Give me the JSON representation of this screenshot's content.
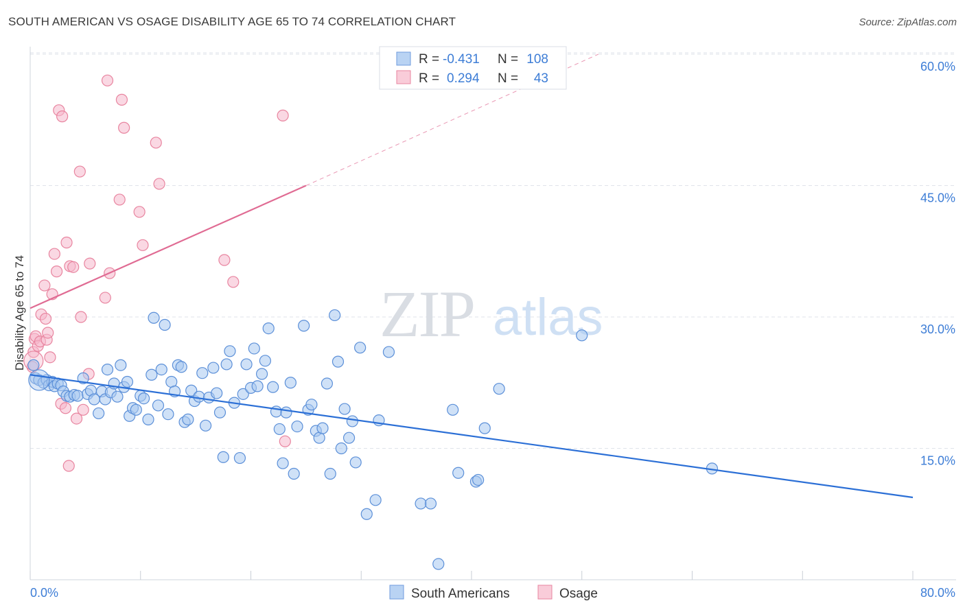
{
  "title": "SOUTH AMERICAN VS OSAGE DISABILITY AGE 65 TO 74 CORRELATION CHART",
  "source": "Source: ZipAtlas.com",
  "watermark": {
    "zip": "ZIP",
    "atlas": "atlas"
  },
  "colors": {
    "blue_fill": "#a8c8f0",
    "blue_stroke": "#5b8fd8",
    "blue_line": "#2b6fd6",
    "pink_fill": "#f6b8cc",
    "pink_stroke": "#e8849f",
    "pink_line": "#e06b93",
    "grid": "#dfe3ea",
    "label": "#3d7dd6"
  },
  "stats_legend": {
    "rows": [
      {
        "r_label": "R =",
        "r_value": "-0.431",
        "n_label": "N =",
        "n_value": "108"
      },
      {
        "r_label": "R =",
        "r_value": "0.294",
        "n_label": "N =",
        "n_value": "43"
      }
    ]
  },
  "bottom_legend": {
    "series1": "South Americans",
    "series2": "Osage"
  },
  "chart_data": {
    "type": "scatter",
    "title": "SOUTH AMERICAN VS OSAGE DISABILITY AGE 65 TO 74 CORRELATION CHART",
    "xlabel": "",
    "ylabel": "Disability Age 65 to 74",
    "xlim": [
      0,
      80
    ],
    "ylim": [
      0,
      60
    ],
    "x_tick_labels": [
      "0.0%",
      "80.0%"
    ],
    "y_ticks": [
      15,
      30,
      45,
      60
    ],
    "y_tick_labels": [
      "15.0%",
      "30.0%",
      "45.0%",
      "60.0%"
    ],
    "grid": true,
    "legend_position": "top-center",
    "series": [
      {
        "name": "South Americans",
        "color": "#a8c8f0",
        "R": -0.431,
        "N": 108,
        "trend": {
          "x": [
            0,
            80
          ],
          "y": [
            23.4,
            9.4
          ]
        },
        "points": [
          [
            0.3,
            24.5
          ],
          [
            0.5,
            23.0
          ],
          [
            0.8,
            22.8
          ],
          [
            1.2,
            22.5
          ],
          [
            1.5,
            22.8
          ],
          [
            1.7,
            22.2
          ],
          [
            2.0,
            22.6
          ],
          [
            2.2,
            22.1
          ],
          [
            2.5,
            22.4
          ],
          [
            2.8,
            22.2
          ],
          [
            3.0,
            21.5
          ],
          [
            3.3,
            21.0
          ],
          [
            3.6,
            20.9
          ],
          [
            4.0,
            21.1
          ],
          [
            4.3,
            21.0
          ],
          [
            4.8,
            23.0
          ],
          [
            5.2,
            21.2
          ],
          [
            5.5,
            21.6
          ],
          [
            5.8,
            20.6
          ],
          [
            6.2,
            19.0
          ],
          [
            6.5,
            21.5
          ],
          [
            6.8,
            20.6
          ],
          [
            7.0,
            24.0
          ],
          [
            7.3,
            21.4
          ],
          [
            7.6,
            22.4
          ],
          [
            7.9,
            20.9
          ],
          [
            8.2,
            24.5
          ],
          [
            8.5,
            22.0
          ],
          [
            8.8,
            22.6
          ],
          [
            9.0,
            18.7
          ],
          [
            9.3,
            19.6
          ],
          [
            9.6,
            19.4
          ],
          [
            10.0,
            21.0
          ],
          [
            10.3,
            20.7
          ],
          [
            10.7,
            18.3
          ],
          [
            11.0,
            23.4
          ],
          [
            11.2,
            29.9
          ],
          [
            11.6,
            19.9
          ],
          [
            11.9,
            24.0
          ],
          [
            12.2,
            29.1
          ],
          [
            12.5,
            18.9
          ],
          [
            12.8,
            22.6
          ],
          [
            13.1,
            21.5
          ],
          [
            13.4,
            24.5
          ],
          [
            13.7,
            24.3
          ],
          [
            14.0,
            18.0
          ],
          [
            14.3,
            18.3
          ],
          [
            14.6,
            21.6
          ],
          [
            14.9,
            20.4
          ],
          [
            15.3,
            20.9
          ],
          [
            15.6,
            23.6
          ],
          [
            15.9,
            17.6
          ],
          [
            16.2,
            20.8
          ],
          [
            16.6,
            24.2
          ],
          [
            16.9,
            21.3
          ],
          [
            17.2,
            19.1
          ],
          [
            17.5,
            14.0
          ],
          [
            17.8,
            24.6
          ],
          [
            18.1,
            26.1
          ],
          [
            18.5,
            20.2
          ],
          [
            19.0,
            13.9
          ],
          [
            19.3,
            21.2
          ],
          [
            19.6,
            24.6
          ],
          [
            20.0,
            21.9
          ],
          [
            20.3,
            26.4
          ],
          [
            20.6,
            22.1
          ],
          [
            21.0,
            23.5
          ],
          [
            21.3,
            25.0
          ],
          [
            21.6,
            28.7
          ],
          [
            22.0,
            22.0
          ],
          [
            22.3,
            19.2
          ],
          [
            22.6,
            17.2
          ],
          [
            22.9,
            13.3
          ],
          [
            23.2,
            19.1
          ],
          [
            23.6,
            22.5
          ],
          [
            23.9,
            12.1
          ],
          [
            24.2,
            17.5
          ],
          [
            24.8,
            29.0
          ],
          [
            25.2,
            19.4
          ],
          [
            25.5,
            20.0
          ],
          [
            25.9,
            17.0
          ],
          [
            26.2,
            16.2
          ],
          [
            26.5,
            17.3
          ],
          [
            26.9,
            22.4
          ],
          [
            27.2,
            12.1
          ],
          [
            27.6,
            30.2
          ],
          [
            27.9,
            24.9
          ],
          [
            28.2,
            15.0
          ],
          [
            28.5,
            19.5
          ],
          [
            28.9,
            16.2
          ],
          [
            29.2,
            18.1
          ],
          [
            29.5,
            13.4
          ],
          [
            29.9,
            26.5
          ],
          [
            30.5,
            7.5
          ],
          [
            31.3,
            9.1
          ],
          [
            31.6,
            18.2
          ],
          [
            32.5,
            26.0
          ],
          [
            35.4,
            8.7
          ],
          [
            36.3,
            8.7
          ],
          [
            37.0,
            1.8
          ],
          [
            38.3,
            19.4
          ],
          [
            38.8,
            12.2
          ],
          [
            40.4,
            11.2
          ],
          [
            40.6,
            11.4
          ],
          [
            41.2,
            17.3
          ],
          [
            42.5,
            21.8
          ],
          [
            50.0,
            27.9
          ],
          [
            61.8,
            12.7
          ]
        ]
      },
      {
        "name": "Osage",
        "color": "#f6b8cc",
        "R": 0.294,
        "N": 43,
        "trend": {
          "x": [
            0,
            25
          ],
          "y": [
            31.0,
            45.0
          ]
        },
        "trend_dashed": {
          "x": [
            25,
            51.5
          ],
          "y": [
            45.0,
            60.0
          ]
        },
        "points": [
          [
            0.2,
            24.3
          ],
          [
            0.3,
            26.0
          ],
          [
            0.4,
            27.5
          ],
          [
            0.5,
            27.8
          ],
          [
            0.7,
            26.7
          ],
          [
            0.9,
            27.2
          ],
          [
            1.0,
            30.3
          ],
          [
            1.3,
            33.6
          ],
          [
            1.4,
            29.8
          ],
          [
            1.5,
            27.4
          ],
          [
            1.6,
            28.2
          ],
          [
            1.8,
            25.4
          ],
          [
            2.0,
            32.6
          ],
          [
            2.2,
            37.2
          ],
          [
            2.4,
            35.2
          ],
          [
            2.6,
            53.6
          ],
          [
            2.8,
            20.1
          ],
          [
            2.9,
            52.9
          ],
          [
            3.2,
            19.6
          ],
          [
            3.3,
            38.5
          ],
          [
            3.5,
            13.0
          ],
          [
            3.6,
            35.8
          ],
          [
            3.9,
            35.7
          ],
          [
            4.2,
            18.4
          ],
          [
            4.5,
            46.6
          ],
          [
            4.6,
            30.0
          ],
          [
            4.8,
            19.4
          ],
          [
            5.3,
            23.5
          ],
          [
            5.4,
            36.1
          ],
          [
            6.8,
            32.2
          ],
          [
            7.0,
            57.0
          ],
          [
            7.2,
            35.0
          ],
          [
            8.1,
            43.4
          ],
          [
            8.3,
            54.8
          ],
          [
            8.5,
            51.6
          ],
          [
            9.9,
            42.0
          ],
          [
            10.2,
            38.2
          ],
          [
            11.4,
            49.9
          ],
          [
            11.7,
            45.2
          ],
          [
            17.6,
            36.5
          ],
          [
            18.4,
            34.0
          ],
          [
            22.9,
            53.0
          ],
          [
            23.1,
            15.8
          ]
        ]
      }
    ]
  }
}
